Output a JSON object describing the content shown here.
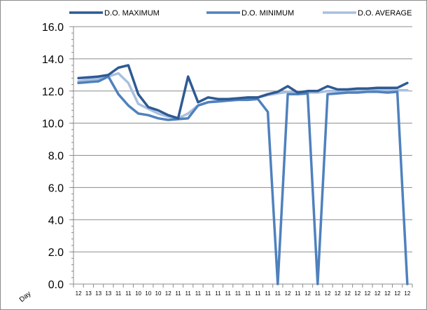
{
  "chart_data": {
    "type": "line",
    "title": "",
    "xlabel": "Day",
    "ylabel": "",
    "ylim": [
      0,
      16
    ],
    "y_ticks": [
      "0.0",
      "2.0",
      "4.0",
      "6.0",
      "8.0",
      "10.0",
      "12.0",
      "14.0",
      "16.0"
    ],
    "grid": "horizontal-major",
    "legend": "top",
    "categories": [
      "12",
      "13",
      "13",
      "13",
      "11",
      "11",
      "10",
      "10",
      "10",
      "12",
      "11",
      "11",
      "11",
      "11",
      "11",
      "11",
      "11",
      "11",
      "11",
      "11",
      "11",
      "12",
      "11",
      "12",
      "11",
      "12",
      "12",
      "12",
      "12",
      "12",
      "12",
      "12",
      "12",
      "12"
    ],
    "series": [
      {
        "name": "D.O. MAXIMUM",
        "color": "#2e5a93",
        "values": [
          12.8,
          12.85,
          12.9,
          13.0,
          13.45,
          13.6,
          11.8,
          11.0,
          10.8,
          10.5,
          10.3,
          12.9,
          11.3,
          11.6,
          11.5,
          11.5,
          11.55,
          11.6,
          11.6,
          11.8,
          11.95,
          12.3,
          11.9,
          12.0,
          12.0,
          12.3,
          12.1,
          12.1,
          12.15,
          12.15,
          12.2,
          12.2,
          12.2,
          12.5
        ]
      },
      {
        "name": "D.O. MINIMUM",
        "color": "#4f81bd",
        "values": [
          12.5,
          12.55,
          12.6,
          12.9,
          11.8,
          11.1,
          10.6,
          10.5,
          10.3,
          10.2,
          10.25,
          10.3,
          11.1,
          11.3,
          11.35,
          11.4,
          11.45,
          11.45,
          11.5,
          10.7,
          0.0,
          11.8,
          11.8,
          11.85,
          0.0,
          11.8,
          11.85,
          11.9,
          11.9,
          11.95,
          11.95,
          11.9,
          11.95,
          0.0
        ]
      },
      {
        "name": "D.O. AVERAGE",
        "color": "#a9bfe0",
        "values": [
          12.6,
          12.7,
          12.75,
          12.9,
          13.1,
          12.5,
          11.2,
          10.9,
          10.6,
          10.4,
          10.3,
          10.6,
          11.1,
          11.3,
          11.4,
          11.45,
          11.5,
          11.5,
          11.6,
          11.75,
          11.85,
          11.95,
          11.85,
          11.9,
          11.9,
          12.0,
          12.0,
          12.0,
          12.0,
          12.05,
          12.05,
          12.05,
          12.05,
          12.05
        ]
      }
    ]
  }
}
